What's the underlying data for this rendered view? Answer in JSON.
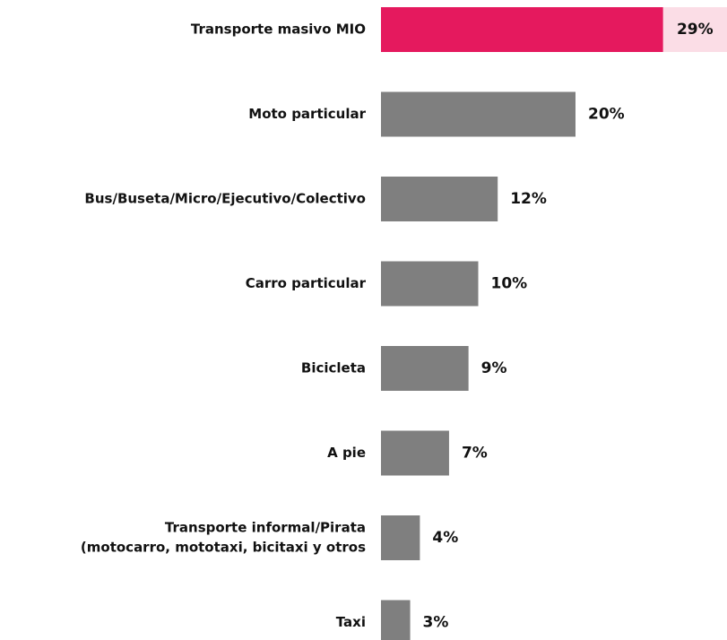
{
  "chart_data": {
    "type": "barh",
    "categories": [
      "Transporte masivo MIO",
      "Moto particular",
      "Bus/Buseta/Micro/Ejecutivo/Colectivo",
      "Carro particular",
      "Bicicleta",
      "A pie",
      [
        "Transporte informal/Pirata",
        "(motocarro, mototaxi, bicitaxi y otros"
      ],
      "Taxi"
    ],
    "values": [
      29,
      20,
      12,
      10,
      9,
      7,
      4,
      3
    ],
    "value_labels": [
      "29%",
      "20%",
      "12%",
      "10%",
      "9%",
      "7%",
      "4%",
      "3%"
    ],
    "colors": [
      "#e5195e",
      "#7f7f7f",
      "#7f7f7f",
      "#7f7f7f",
      "#7f7f7f",
      "#7f7f7f",
      "#7f7f7f",
      "#7f7f7f"
    ],
    "highlight": 0,
    "highlight_color": "#fbdde6"
  }
}
